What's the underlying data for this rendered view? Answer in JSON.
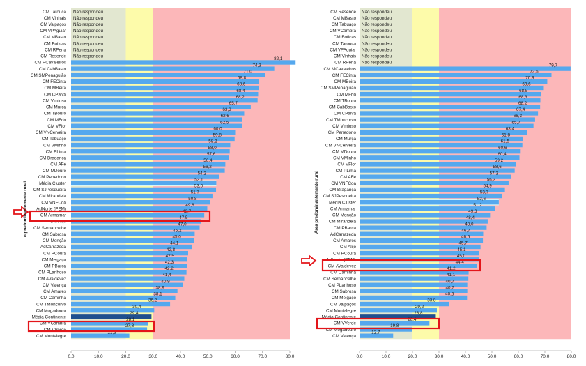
{
  "colors": {
    "zone_low": "#e2e7d0",
    "zone_mid": "#fdfbaa",
    "zone_high": "#fcb7b9",
    "bar": "#55a8ee",
    "bar_dark": "#1f4f8f",
    "highlight_bar": "#d6f6f6",
    "box": "#e3151a",
    "arrow": "#e3151a"
  },
  "chart_data": [
    {
      "type": "bar",
      "orientation": "horizontal",
      "ylabel": "o predominantemente rural",
      "xlim": [
        0,
        80
      ],
      "xticks": [
        "0,0",
        "10,0",
        "20,0",
        "30,0",
        "40,0",
        "50,0",
        "60,0",
        "70,0",
        "80,0"
      ],
      "zones": [
        0,
        20,
        30,
        80
      ],
      "no_response_label": "Não respondeu",
      "categories": [
        "CM Tarouca",
        "CM Vinhais",
        "CM Valpaços",
        "CM VPAguiar",
        "CM MBasto",
        "CM Boticas",
        "CM RPena",
        "CM Resende",
        "CM PCavaleiros",
        "CM CabBasto",
        "CM SMPenaguião",
        "CM FECinta",
        "CM MBeira",
        "CM CPaiva",
        "CM Vimioso",
        "CM Murça",
        "CM TBouro",
        "CM MFrio",
        "CM VFlor",
        "CM VNCerveira",
        "CM Tabuaço",
        "CM VMinho",
        "CM PLima",
        "CM Bragança",
        "CM AFé",
        "CM MDouro",
        "CM Penedono",
        "Média Cluster",
        "CM SJPesqueira",
        "CM Mirandela",
        "CM VNFCoa",
        "AdNorte (PEM)",
        "CM Armamar",
        "CM Alijó",
        "CM Sernancelhe",
        "CM Sabrosa",
        "CM Monção",
        "AdCarrazeda",
        "CM PCoura",
        "CM Melgaço",
        "CM PBarca",
        "CM PLanhoso",
        "CM AValdevez",
        "CM Valença",
        "CM Amares",
        "CM Caminha",
        "CM TMoncorvo",
        "CM Mogadouro",
        "Média Continente",
        "CM VCambra",
        "CM VVerde",
        "CM Montalegre"
      ],
      "values": [
        null,
        null,
        null,
        null,
        null,
        null,
        null,
        null,
        82.1,
        74.3,
        71.0,
        68.8,
        68.6,
        68.4,
        68.2,
        65.7,
        63.3,
        62.6,
        62.5,
        60.0,
        59.8,
        58.2,
        58.0,
        57.6,
        56.4,
        56.2,
        54.2,
        53.1,
        53.0,
        51.7,
        50.8,
        49.8,
        48.7,
        47.5,
        47.0,
        45.2,
        45.0,
        44.1,
        42.8,
        42.5,
        42.3,
        42.2,
        41.4,
        40.9,
        38.9,
        38.1,
        36.2,
        30.4,
        29.4,
        28.1,
        27.8,
        21.3
      ],
      "labels": [
        "",
        "",
        "",
        "",
        "",
        "",
        "",
        "",
        "82,1",
        "74,3",
        "71,0",
        "68,8",
        "68,6",
        "68,4",
        "68,2",
        "65,7",
        "63,3",
        "62,6",
        "62,5",
        "60,0",
        "59,8",
        "58,2",
        "58,0",
        "57,6",
        "56,4",
        "56,2",
        "54,2",
        "53,1",
        "53,0",
        "51,7",
        "50,8",
        "49,8",
        "48,7",
        "47,5",
        "47,0",
        "45,2",
        "45,0",
        "44,1",
        "42,8",
        "42,5",
        "42,3",
        "42,2",
        "41,4",
        "40,9",
        "38,9",
        "38,1",
        "36,2",
        "30,4",
        "29,4",
        "28,1",
        "27,8",
        "21,3"
      ],
      "highlighted": [
        "AdNorte (PEM)",
        "Média Continente"
      ],
      "cluster_average": "Média Cluster",
      "national_average": "Média Continente"
    },
    {
      "type": "bar",
      "orientation": "horizontal",
      "ylabel": "Área predominantemente rural",
      "xlim": [
        0,
        80
      ],
      "xticks": [
        "0,0",
        "10,0",
        "20,0",
        "30,0",
        "40,0",
        "50,0",
        "60,0",
        "70,0",
        "80,0"
      ],
      "zones": [
        0,
        20,
        30,
        80
      ],
      "no_response_label": "Não respondeu",
      "categories": [
        "CM Resende",
        "CM MBasto",
        "CM Tabuaço",
        "CM VCambra",
        "CM Boticas",
        "CM Tarouca",
        "CM VPAguiar",
        "CM Vinhais",
        "CM RPena",
        "CM MCavaleiros",
        "CM FECinta",
        "CM MBeira",
        "CM SMPenaguião",
        "CM MFrio",
        "CM TBouro",
        "CM CabBasto",
        "CM CPaiva",
        "CM TMoncorvo",
        "CM Vimioso",
        "CM Penedono",
        "CM Murça",
        "CM VNCerveira",
        "CM MDouro",
        "CM VMinho",
        "CM VFlor",
        "CM PLima",
        "CM AFé",
        "CM VNFCoa",
        "CM Bragança",
        "CM SJPesqueira",
        "Média Cluster",
        "CM Armamar",
        "CM Monção",
        "CM Mirandela",
        "CM PBarca",
        "AdCarrazeda",
        "CM Amares",
        "CM Alijó",
        "CM PCoura",
        "AdNorte (PEM)",
        "CM AValdevez",
        "CM Caminha",
        "CM Sernancelhe",
        "CM PLanhoso",
        "CM Sabrosa",
        "CM Melgaço",
        "CM Valpaços",
        "CM Montalegre",
        "Média Continente",
        "CM VVerde",
        "CM Mogadouro",
        "CM Valença"
      ],
      "values": [
        null,
        null,
        null,
        null,
        null,
        null,
        null,
        null,
        null,
        79.7,
        72.5,
        70.9,
        69.6,
        68.5,
        68.3,
        68.2,
        67.4,
        66.3,
        65.7,
        63.4,
        61.8,
        61.5,
        60.6,
        60.4,
        59.2,
        58.6,
        57.3,
        56.3,
        54.9,
        53.7,
        52.6,
        51.2,
        49.3,
        48.4,
        48.0,
        46.7,
        46.6,
        45.7,
        45.1,
        45.0,
        44.4,
        41.2,
        41.1,
        40.7,
        40.7,
        40.6,
        33.8,
        29.2,
        28.8,
        26.4,
        19.8,
        12.7
      ],
      "labels": [
        "",
        "",
        "",
        "",
        "",
        "",
        "",
        "",
        "",
        "79,7",
        "72,5",
        "70,9",
        "69,6",
        "68,5",
        "68,3",
        "68,2",
        "67,4",
        "66,3",
        "65,7",
        "63,4",
        "61,8",
        "61,5",
        "60,6",
        "60,4",
        "59,2",
        "58,6",
        "57,3",
        "56,3",
        "54,9",
        "53,7",
        "52,6",
        "51,2",
        "49,3",
        "48,4",
        "48,0",
        "46,7",
        "46,6",
        "45,7",
        "45,1",
        "45,0",
        "44,4",
        "41,2",
        "41,1",
        "40,7",
        "40,7",
        "40,6",
        "33,8",
        "29,2",
        "28,8",
        "26,4",
        "19,8",
        "12,7"
      ],
      "highlighted": [
        "AdNorte (PEM)",
        "Média Continente"
      ],
      "cluster_average": "Média Cluster",
      "national_average": "Média Continente"
    }
  ]
}
